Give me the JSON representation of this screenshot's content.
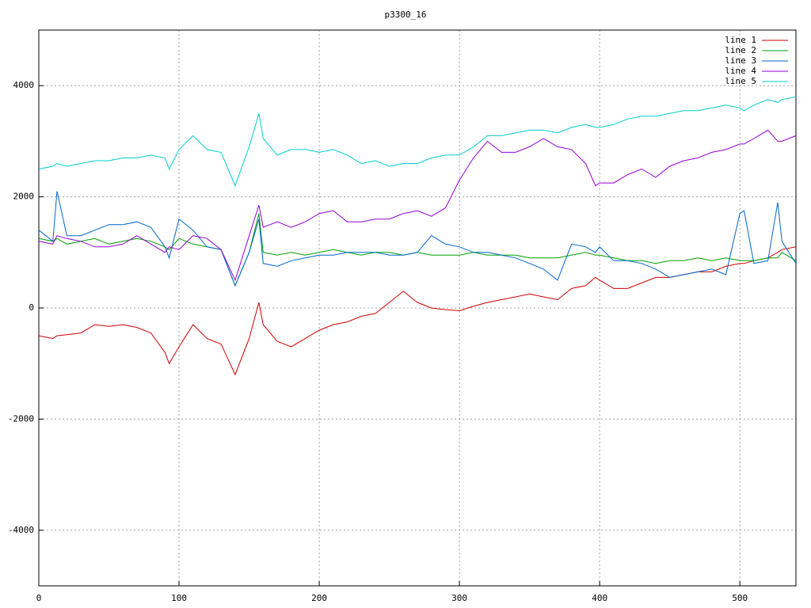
{
  "chart_data": {
    "type": "line",
    "title": "p3300_16",
    "x": [
      0,
      10,
      13,
      20,
      30,
      40,
      50,
      60,
      70,
      80,
      90,
      93,
      100,
      110,
      120,
      130,
      140,
      150,
      157,
      160,
      170,
      180,
      190,
      200,
      210,
      220,
      230,
      240,
      250,
      260,
      270,
      280,
      290,
      300,
      310,
      320,
      330,
      340,
      350,
      360,
      370,
      380,
      390,
      397,
      400,
      410,
      420,
      430,
      440,
      450,
      460,
      470,
      480,
      490,
      500,
      503,
      510,
      520,
      527,
      530,
      540
    ],
    "series": [
      {
        "name": "line 1",
        "color": "#d00000",
        "values": [
          -500,
          -550,
          -500,
          -480,
          -450,
          -300,
          -330,
          -300,
          -350,
          -450,
          -800,
          -1000,
          -700,
          -300,
          -550,
          -650,
          -1200,
          -550,
          100,
          -300,
          -600,
          -700,
          -550,
          -400,
          -300,
          -250,
          -150,
          -100,
          100,
          300,
          100,
          0,
          -30,
          -50,
          30,
          100,
          150,
          200,
          250,
          200,
          150,
          350,
          400,
          550,
          500,
          350,
          350,
          450,
          550,
          550,
          600,
          650,
          650,
          750,
          800,
          800,
          850,
          900,
          1000,
          1050,
          1100
        ]
      },
      {
        "name": "line 2",
        "color": "#00a000",
        "values": [
          1250,
          1200,
          1250,
          1150,
          1200,
          1250,
          1150,
          1200,
          1250,
          1200,
          1100,
          1050,
          1250,
          1150,
          1100,
          1050,
          400,
          1000,
          1700,
          1000,
          950,
          1000,
          950,
          1000,
          1050,
          1000,
          950,
          1000,
          1000,
          950,
          1000,
          950,
          950,
          950,
          1000,
          950,
          950,
          950,
          900,
          900,
          900,
          950,
          1000,
          950,
          950,
          900,
          850,
          850,
          800,
          850,
          850,
          900,
          850,
          900,
          850,
          850,
          850,
          900,
          900,
          1000,
          850
        ]
      },
      {
        "name": "line 3",
        "color": "#0066cc",
        "values": [
          1400,
          1200,
          2100,
          1300,
          1300,
          1400,
          1500,
          1500,
          1550,
          1450,
          1100,
          900,
          1600,
          1400,
          1100,
          1050,
          400,
          1000,
          1600,
          800,
          750,
          850,
          900,
          950,
          950,
          1000,
          1000,
          1000,
          950,
          950,
          1000,
          1300,
          1150,
          1100,
          1000,
          1000,
          950,
          900,
          800,
          700,
          500,
          1150,
          1100,
          1000,
          1100,
          850,
          850,
          800,
          700,
          550,
          600,
          650,
          700,
          600,
          1700,
          1750,
          800,
          850,
          1900,
          1200,
          800
        ]
      },
      {
        "name": "line 4",
        "color": "#9400d3",
        "values": [
          1200,
          1150,
          1300,
          1250,
          1200,
          1100,
          1100,
          1150,
          1300,
          1150,
          1000,
          1100,
          1050,
          1300,
          1250,
          1050,
          500,
          1300,
          1850,
          1450,
          1550,
          1450,
          1550,
          1700,
          1750,
          1550,
          1550,
          1600,
          1600,
          1700,
          1750,
          1650,
          1800,
          2300,
          2700,
          3000,
          2800,
          2800,
          2900,
          3050,
          2900,
          2850,
          2600,
          2200,
          2250,
          2250,
          2400,
          2500,
          2350,
          2550,
          2650,
          2700,
          2800,
          2850,
          2950,
          2950,
          3050,
          3200,
          3000,
          3000,
          3100
        ]
      },
      {
        "name": "line 5",
        "color": "#00cccc",
        "values": [
          2500,
          2550,
          2600,
          2550,
          2600,
          2650,
          2650,
          2700,
          2700,
          2750,
          2700,
          2500,
          2850,
          3100,
          2850,
          2800,
          2200,
          2900,
          3500,
          3050,
          2750,
          2850,
          2850,
          2800,
          2850,
          2750,
          2600,
          2650,
          2550,
          2600,
          2600,
          2700,
          2750,
          2750,
          2900,
          3100,
          3100,
          3150,
          3200,
          3200,
          3150,
          3250,
          3300,
          3250,
          3250,
          3300,
          3400,
          3450,
          3450,
          3500,
          3550,
          3550,
          3600,
          3650,
          3600,
          3550,
          3650,
          3750,
          3700,
          3750,
          3800
        ]
      }
    ],
    "xlim": [
      0,
      540
    ],
    "xticks": [
      0,
      100,
      200,
      300,
      400,
      500
    ],
    "ylim": [
      -5000,
      5000
    ],
    "yticks": [
      -4000,
      -2000,
      0,
      2000,
      4000
    ],
    "grid": true,
    "legend": "top-right"
  }
}
